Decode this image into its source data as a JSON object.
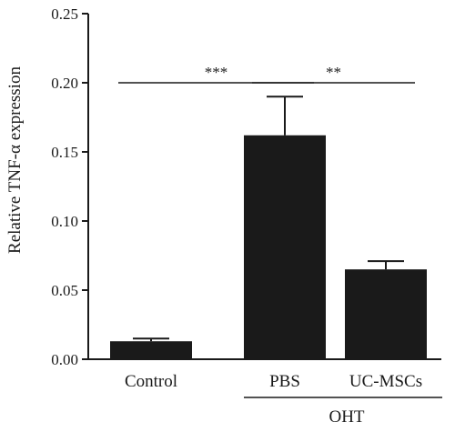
{
  "chart_data": {
    "type": "bar",
    "title": "",
    "xlabel": "",
    "ylabel": "Relative TNF-α expression",
    "categories": [
      "Control",
      "PBS",
      "UC-MSCs"
    ],
    "values": [
      0.013,
      0.162,
      0.065
    ],
    "error_upper": [
      0.015,
      0.19,
      0.071
    ],
    "ylim": [
      0,
      0.25
    ],
    "yticks": [
      "0.00",
      "0.05",
      "0.10",
      "0.15",
      "0.20",
      "0.25"
    ],
    "group_label": {
      "text": "OHT",
      "categories": [
        "PBS",
        "UC-MSCs"
      ]
    },
    "significance": [
      {
        "from": "Control",
        "to": "PBS",
        "label": "***",
        "y": 0.2
      },
      {
        "from": "PBS",
        "to": "UC-MSCs",
        "label": "**",
        "y": 0.2
      }
    ],
    "colors": {
      "bar": "#1a1a1a",
      "axis": "#1a1a1a"
    },
    "grid": false,
    "legend": "none"
  }
}
